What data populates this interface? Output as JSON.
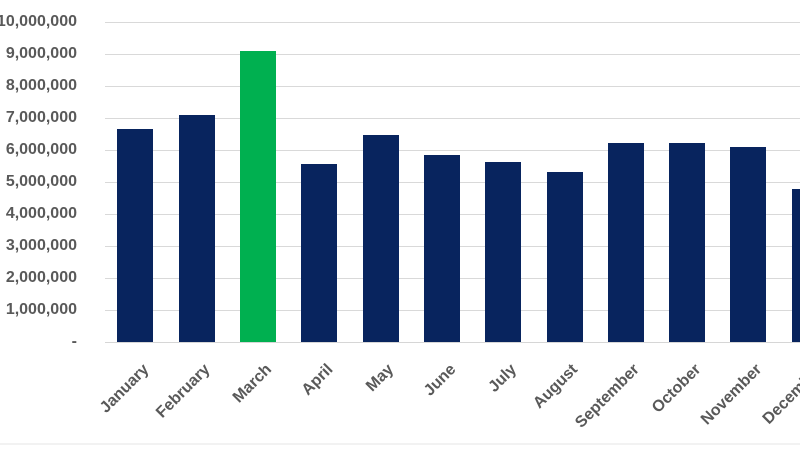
{
  "chart_data": {
    "type": "bar",
    "title": "",
    "xlabel": "",
    "ylabel": "",
    "categories": [
      "January",
      "February",
      "March",
      "April",
      "May",
      "June",
      "July",
      "August",
      "September",
      "October",
      "November",
      "December"
    ],
    "values": [
      6650000,
      7080000,
      9100000,
      5570000,
      6470000,
      5850000,
      5630000,
      5300000,
      6230000,
      6220000,
      6100000,
      4770000
    ],
    "highlight_category": "March",
    "highlight_index": 2,
    "ylim": [
      0,
      10000000
    ],
    "y_tick_step": 1000000,
    "y_tick_labels_top_to_bottom": [
      "10,000,000",
      "9,000,000",
      "8,000,000",
      "7,000,000",
      "6,000,000",
      "5,000,000",
      "4,000,000",
      "3,000,000",
      "2,000,000",
      "1,000,000",
      "-"
    ],
    "legend": "none",
    "grid": "horizontal",
    "colors": {
      "bar": "#08245E",
      "highlight": "#00B050",
      "gridline": "#D9D9D9",
      "axis_text": "#595959",
      "background": "#FFFFFF"
    }
  }
}
